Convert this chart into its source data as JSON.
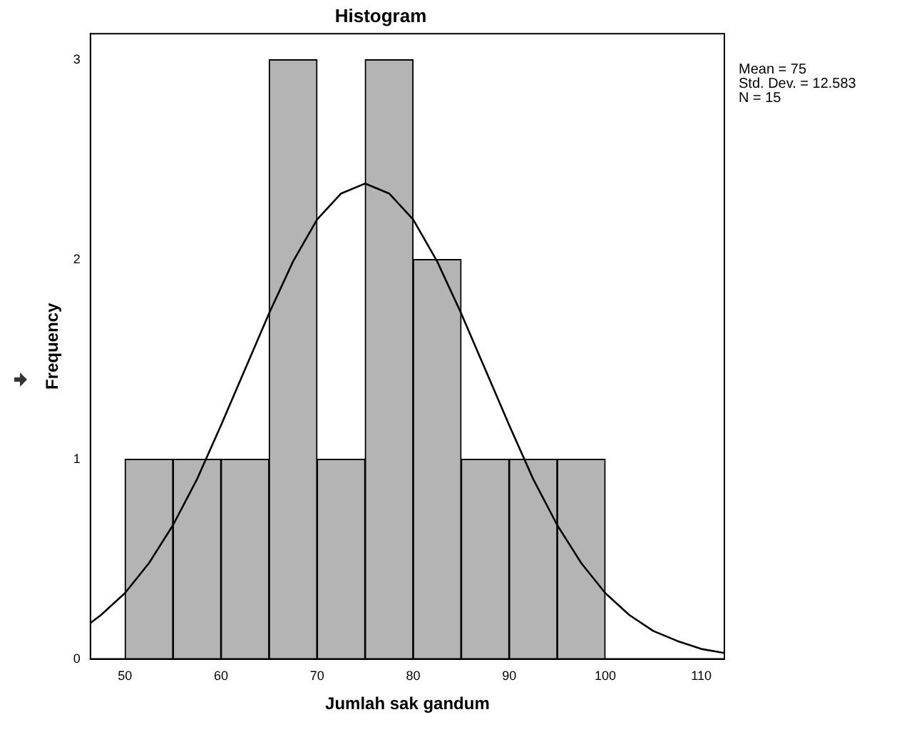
{
  "chart_data": {
    "type": "histogram",
    "title": "Histogram",
    "xlabel": "Jumlah sak gandum",
    "ylabel": "Frequency",
    "bins": [
      50,
      55,
      60,
      65,
      70,
      75,
      80,
      85,
      90,
      95,
      100
    ],
    "values": [
      1,
      1,
      1,
      3,
      1,
      3,
      2,
      1,
      1,
      1
    ],
    "color": "#b4b4b4",
    "series": [
      {
        "type": "line",
        "color": "#000000",
        "x": [
          46.4,
          47.5,
          50,
          52.5,
          55,
          57.5,
          60,
          62.5,
          65,
          67.5,
          70,
          72.5,
          75,
          77.5,
          80,
          82.5,
          85,
          87.5,
          90,
          92.5,
          95,
          97.5,
          100,
          102.5,
          105,
          107.5,
          110,
          112.4
        ],
        "values": [
          0.18,
          0.22,
          0.33,
          0.48,
          0.67,
          0.9,
          1.17,
          1.45,
          1.73,
          1.99,
          2.2,
          2.33,
          2.38,
          2.33,
          2.2,
          1.99,
          1.73,
          1.45,
          1.17,
          0.9,
          0.67,
          0.48,
          0.33,
          0.22,
          0.14,
          0.09,
          0.05,
          0.03
        ]
      }
    ],
    "xlim": [
      46.4,
      112.4
    ],
    "xticks": [
      50,
      60,
      70,
      80,
      90,
      100,
      110
    ],
    "ylim": [
      0,
      3.13
    ],
    "yticks": [
      0,
      1,
      2,
      3
    ],
    "annotations": [
      "Mean = 75",
      "Std. Dev. = 12.583",
      "N = 15"
    ],
    "grid": false,
    "legend": false,
    "marker": "none",
    "line_style": "solid"
  }
}
